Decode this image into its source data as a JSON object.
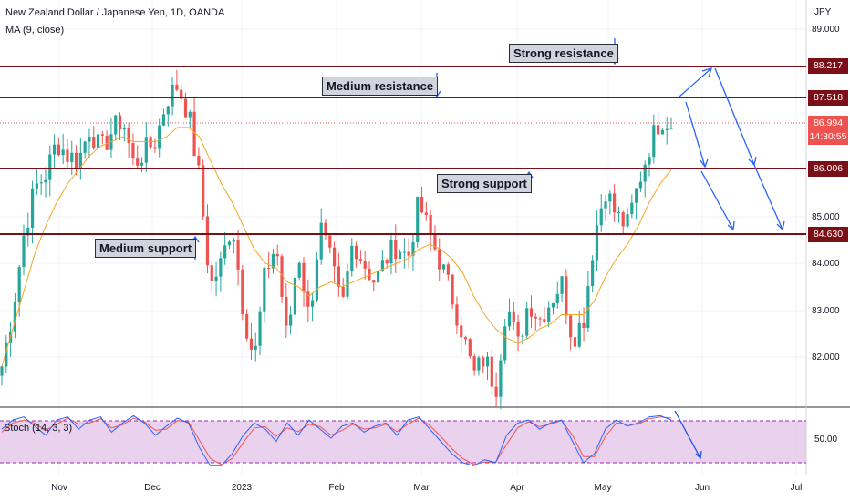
{
  "chart": {
    "title": "New Zealand Dollar / Japanese Yen, 1D, OANDA",
    "ma_label": "MA (9, close)",
    "currency": "JPY",
    "stoch_label": "Stoch (14, 3, 3)",
    "current_price": "86.994",
    "countdown": "14:30:55"
  },
  "annotations": {
    "strong_resistance": "Strong resistance",
    "medium_resistance": "Medium resistance",
    "strong_support": "Strong support",
    "medium_support": "Medium support"
  },
  "levels": {
    "strong_resistance": "88.217",
    "medium_resistance": "87.518",
    "strong_support": "86.006",
    "medium_support": "84.630"
  },
  "ytick_labels": {
    "t89": "89.000",
    "t85": "85.000",
    "t84": "84.000",
    "t83": "83.000",
    "t82": "82.000",
    "stoch50": "50.00"
  },
  "xtick_labels": {
    "nov": "Nov",
    "dec": "Dec",
    "y2023": "2023",
    "feb": "Feb",
    "mar": "Mar",
    "apr": "Apr",
    "may": "May",
    "jun": "Jun",
    "jul": "Jul"
  },
  "colors": {
    "up": "#26a69a",
    "down": "#ef5350",
    "ma": "#f5a623",
    "level": "#7b0f17",
    "arrow": "#2962ff",
    "stoch_k": "#2962ff",
    "stoch_d": "#ef5350",
    "stoch_band": "#e1bee7"
  },
  "chart_data": {
    "type": "candlestick",
    "symbol": "NZDJPY",
    "timeframe": "1D",
    "ylim": [
      81.0,
      89.4
    ],
    "months": [
      "Nov",
      "Dec",
      "2023",
      "Feb",
      "Mar",
      "Apr",
      "May",
      "Jun",
      "Jul"
    ],
    "close_path": [
      81.8,
      83.0,
      84.6,
      85.6,
      85.9,
      86.6,
      86.3,
      86.2,
      86.9,
      86.4,
      86.8,
      87.1,
      86.1,
      86.4,
      86.6,
      87.5,
      87.8,
      87.2,
      85.8,
      83.5,
      84.0,
      84.9,
      83.0,
      81.9,
      83.8,
      84.4,
      82.3,
      84.3,
      82.8,
      84.8,
      84.0,
      83.0,
      84.5,
      84.0,
      83.6,
      84.1,
      84.4,
      84.1,
      85.3,
      84.6,
      84.0,
      83.3,
      82.5,
      81.6,
      82.0,
      81.3,
      83.2,
      82.2,
      83.2,
      82.8,
      83.2,
      83.6,
      82.4,
      82.8,
      84.6,
      85.6,
      85.0,
      84.8,
      85.7,
      86.5,
      87.1,
      87.0
    ],
    "ma9_approx": [
      81.8,
      82.6,
      83.4,
      84.2,
      84.8,
      85.3,
      85.7,
      86.0,
      86.3,
      86.5,
      86.6,
      86.7,
      86.6,
      86.6,
      86.6,
      86.7,
      86.9,
      86.9,
      86.7,
      86.2,
      85.7,
      85.3,
      84.8,
      84.3,
      84.0,
      83.9,
      83.6,
      83.5,
      83.3,
      83.5,
      83.6,
      83.5,
      83.6,
      83.7,
      83.8,
      83.9,
      84.0,
      84.1,
      84.3,
      84.4,
      84.3,
      84.1,
      83.8,
      83.3,
      82.9,
      82.6,
      82.4,
      82.3,
      82.4,
      82.6,
      82.7,
      82.9,
      82.9,
      82.9,
      83.2,
      83.7,
      84.1,
      84.4,
      84.8,
      85.3,
      85.7,
      86.0
    ],
    "horizontal_levels": [
      {
        "label": "Strong resistance",
        "value": 88.217
      },
      {
        "label": "Medium resistance",
        "value": 87.518
      },
      {
        "label": "Strong support",
        "value": 86.006
      },
      {
        "label": "Medium support",
        "value": 84.63
      }
    ],
    "last_price": 86.994,
    "y_ticks": [
      89.0,
      88.217,
      87.518,
      86.994,
      86.006,
      85.0,
      84.63,
      84.0,
      83.0,
      82.0
    ],
    "stochastic": {
      "name": "Stoch (14, 3, 3)",
      "band": [
        20,
        80
      ],
      "tick": 50,
      "k_approx": [
        70,
        85,
        90,
        75,
        60,
        85,
        90,
        70,
        85,
        90,
        65,
        80,
        92,
        80,
        60,
        75,
        88,
        80,
        40,
        10,
        10,
        30,
        60,
        80,
        70,
        50,
        80,
        60,
        85,
        70,
        55,
        75,
        80,
        65,
        75,
        80,
        60,
        85,
        90,
        70,
        50,
        30,
        15,
        10,
        20,
        15,
        60,
        80,
        85,
        70,
        80,
        85,
        50,
        15,
        30,
        70,
        85,
        75,
        80,
        90,
        92,
        85
      ],
      "d_approx": [
        65,
        80,
        85,
        80,
        68,
        78,
        88,
        78,
        80,
        87,
        72,
        77,
        88,
        82,
        68,
        70,
        84,
        82,
        52,
        22,
        12,
        22,
        48,
        72,
        74,
        58,
        72,
        66,
        78,
        74,
        60,
        68,
        78,
        70,
        72,
        78,
        66,
        78,
        88,
        76,
        58,
        38,
        22,
        12,
        16,
        16,
        45,
        72,
        82,
        74,
        78,
        84,
        60,
        25,
        25,
        58,
        80,
        78,
        78,
        87,
        90,
        88
      ]
    }
  }
}
